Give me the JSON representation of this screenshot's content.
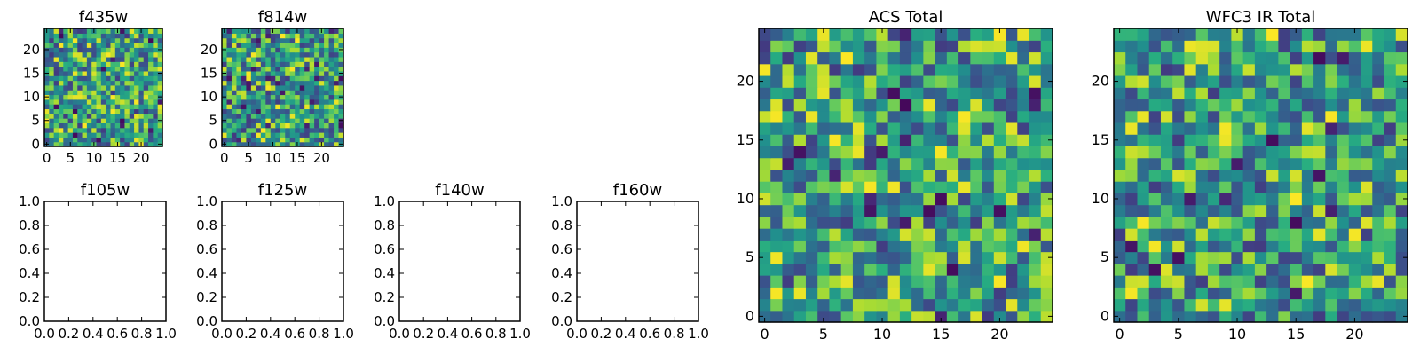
{
  "colormap": "viridis",
  "chart_data": [
    {
      "type": "heatmap",
      "title": "f435w",
      "xlabel": "",
      "ylabel": "",
      "grid_size": [
        25,
        25
      ],
      "xlim": [
        0,
        24
      ],
      "ylim": [
        0,
        24
      ],
      "xticks": [
        0,
        5,
        10,
        15,
        20
      ],
      "yticks": [
        0,
        5,
        10,
        15,
        20
      ],
      "colormap": "viridis",
      "seed": 11
    },
    {
      "type": "heatmap",
      "title": "f814w",
      "xlabel": "",
      "ylabel": "",
      "grid_size": [
        25,
        25
      ],
      "xlim": [
        0,
        24
      ],
      "ylim": [
        0,
        24
      ],
      "xticks": [
        0,
        5,
        10,
        15,
        20
      ],
      "yticks": [
        0,
        5,
        10,
        15,
        20
      ],
      "colormap": "viridis",
      "seed": 23
    },
    {
      "type": "empty",
      "title": "f105w",
      "xlim": [
        0,
        1
      ],
      "ylim": [
        0,
        1
      ],
      "xticks": [
        "0.0",
        "0.2",
        "0.4",
        "0.6",
        "0.8",
        "1.0"
      ],
      "yticks": [
        "0.0",
        "0.2",
        "0.4",
        "0.6",
        "0.8",
        "1.0"
      ]
    },
    {
      "type": "empty",
      "title": "f125w",
      "xlim": [
        0,
        1
      ],
      "ylim": [
        0,
        1
      ],
      "xticks": [
        "0.0",
        "0.2",
        "0.4",
        "0.6",
        "0.8",
        "1.0"
      ],
      "yticks": [
        "0.0",
        "0.2",
        "0.4",
        "0.6",
        "0.8",
        "1.0"
      ]
    },
    {
      "type": "empty",
      "title": "f140w",
      "xlim": [
        0,
        1
      ],
      "ylim": [
        0,
        1
      ],
      "xticks": [
        "0.0",
        "0.2",
        "0.4",
        "0.6",
        "0.8",
        "1.0"
      ],
      "yticks": [
        "0.0",
        "0.2",
        "0.4",
        "0.6",
        "0.8",
        "1.0"
      ]
    },
    {
      "type": "empty",
      "title": "f160w",
      "xlim": [
        0,
        1
      ],
      "ylim": [
        0,
        1
      ],
      "xticks": [
        "0.0",
        "0.2",
        "0.4",
        "0.6",
        "0.8",
        "1.0"
      ],
      "yticks": [
        "0.0",
        "0.2",
        "0.4",
        "0.6",
        "0.8",
        "1.0"
      ]
    },
    {
      "type": "heatmap",
      "title": "ACS Total",
      "xlabel": "",
      "ylabel": "",
      "grid_size": [
        25,
        25
      ],
      "xlim": [
        0,
        24
      ],
      "ylim": [
        0,
        24
      ],
      "xticks": [
        0,
        5,
        10,
        15,
        20
      ],
      "yticks": [
        0,
        5,
        10,
        15,
        20
      ],
      "colormap": "viridis",
      "seed": 37
    },
    {
      "type": "heatmap",
      "title": "WFC3 IR Total",
      "xlabel": "",
      "ylabel": "",
      "grid_size": [
        25,
        25
      ],
      "xlim": [
        0,
        24
      ],
      "ylim": [
        0,
        24
      ],
      "xticks": [
        0,
        5,
        10,
        15,
        20
      ],
      "yticks": [
        0,
        5,
        10,
        15,
        20
      ],
      "colormap": "viridis",
      "seed": 53
    }
  ]
}
